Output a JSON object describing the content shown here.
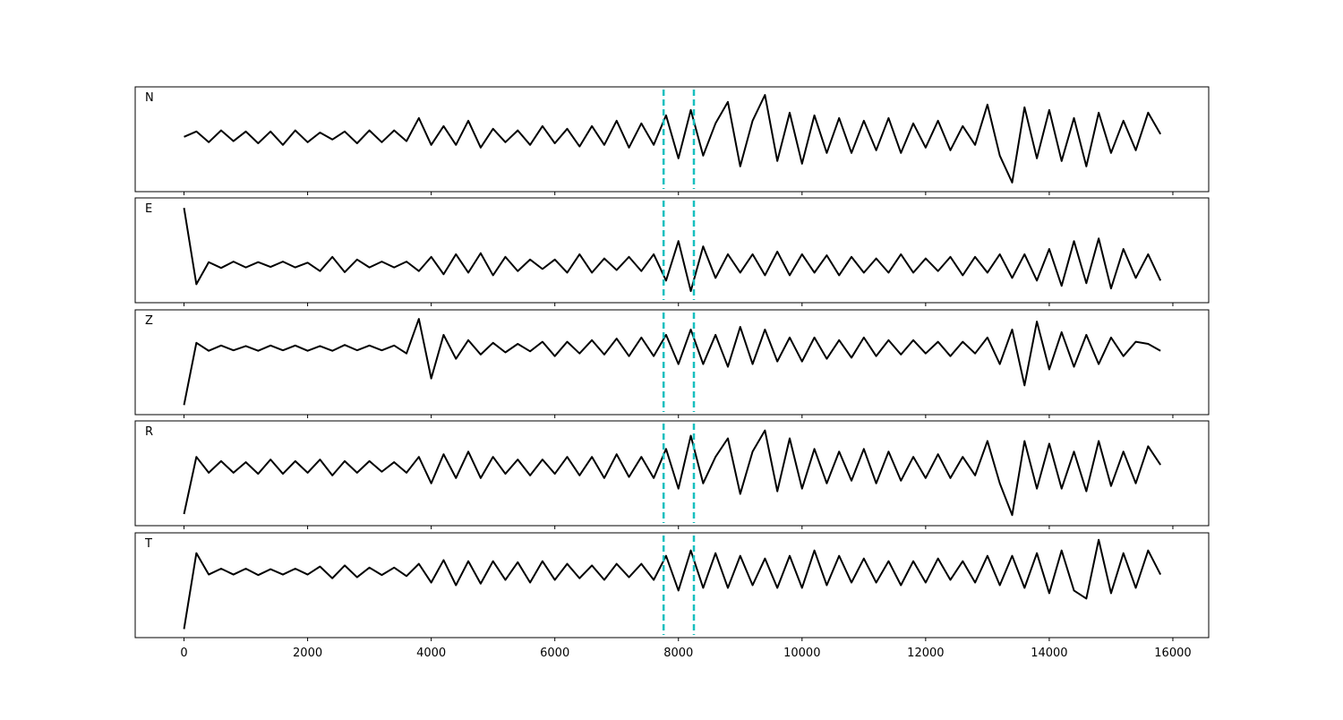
{
  "chart_data": [
    {
      "type": "line",
      "label": "N",
      "color": "#000000",
      "xlim": [
        -790,
        16580
      ],
      "ylim": [
        -1.02,
        0.93
      ],
      "vlines": [
        7760,
        8250
      ],
      "vline_color": "#17bfbf",
      "x": [
        0,
        200,
        400,
        600,
        800,
        1000,
        1200,
        1400,
        1600,
        1800,
        2000,
        2200,
        2400,
        2600,
        2800,
        3000,
        3200,
        3400,
        3600,
        3800,
        4000,
        4200,
        4400,
        4600,
        4800,
        5000,
        5200,
        5400,
        5600,
        5800,
        6000,
        6200,
        6400,
        6600,
        6800,
        7000,
        7200,
        7400,
        7600,
        7800,
        8000,
        8200,
        8400,
        8600,
        8800,
        9000,
        9200,
        9400,
        9600,
        9800,
        10000,
        10200,
        10400,
        10600,
        10800,
        11000,
        11200,
        11400,
        11600,
        11800,
        12000,
        12200,
        12400,
        12600,
        12800,
        13000,
        13200,
        13400,
        13600,
        13800,
        14000,
        14200,
        14400,
        14600,
        14800,
        15000,
        15200,
        15400,
        15600,
        15800
      ],
      "values": [
        0,
        0.1,
        -0.1,
        0.12,
        -0.08,
        0.1,
        -0.12,
        0.1,
        -0.15,
        0.12,
        -0.1,
        0.08,
        -0.05,
        0.1,
        -0.12,
        0.12,
        -0.1,
        0.12,
        -0.08,
        0.35,
        -0.15,
        0.2,
        -0.15,
        0.3,
        -0.2,
        0.15,
        -0.1,
        0.12,
        -0.15,
        0.2,
        -0.12,
        0.15,
        -0.18,
        0.2,
        -0.15,
        0.3,
        -0.2,
        0.25,
        -0.15,
        0.4,
        -0.4,
        0.5,
        -0.35,
        0.25,
        0.65,
        -0.55,
        0.3,
        0.78,
        -0.45,
        0.45,
        -0.5,
        0.4,
        -0.3,
        0.35,
        -0.3,
        0.3,
        -0.25,
        0.35,
        -0.3,
        0.25,
        -0.2,
        0.3,
        -0.25,
        0.2,
        -0.15,
        0.6,
        -0.35,
        -0.85,
        0.55,
        -0.4,
        0.5,
        -0.45,
        0.35,
        -0.55,
        0.45,
        -0.3,
        0.3,
        -0.25,
        0.45,
        0.05
      ]
    },
    {
      "type": "line",
      "label": "E",
      "color": "#000000",
      "xlim": [
        -790,
        16580
      ],
      "ylim": [
        -0.72,
        1.27
      ],
      "vlines": [
        7760,
        8250
      ],
      "vline_color": "#17bfbf",
      "x": [
        0,
        200,
        400,
        600,
        800,
        1000,
        1200,
        1400,
        1600,
        1800,
        2000,
        2200,
        2400,
        2600,
        2800,
        3000,
        3200,
        3400,
        3600,
        3800,
        4000,
        4200,
        4400,
        4600,
        4800,
        5000,
        5200,
        5400,
        5600,
        5800,
        6000,
        6200,
        6400,
        6600,
        6800,
        7000,
        7200,
        7400,
        7600,
        7800,
        8000,
        8200,
        8400,
        8600,
        8800,
        9000,
        9200,
        9400,
        9600,
        9800,
        10000,
        10200,
        10400,
        10600,
        10800,
        11000,
        11200,
        11400,
        11600,
        11800,
        12000,
        12200,
        12400,
        12600,
        12800,
        13000,
        13200,
        13400,
        13600,
        13800,
        14000,
        14200,
        14400,
        14600,
        14800,
        15000,
        15200,
        15400,
        15600,
        15800
      ],
      "values": [
        1.08,
        -0.37,
        0.05,
        -0.06,
        0.06,
        -0.05,
        0.05,
        -0.04,
        0.06,
        -0.05,
        0.04,
        -0.12,
        0.15,
        -0.14,
        0.1,
        -0.05,
        0.06,
        -0.05,
        0.06,
        -0.12,
        0.15,
        -0.18,
        0.2,
        -0.15,
        0.22,
        -0.2,
        0.15,
        -0.12,
        0.1,
        -0.08,
        0.1,
        -0.15,
        0.2,
        -0.15,
        0.12,
        -0.1,
        0.15,
        -0.12,
        0.2,
        -0.3,
        0.45,
        -0.5,
        0.35,
        -0.25,
        0.2,
        -0.15,
        0.2,
        -0.2,
        0.25,
        -0.2,
        0.2,
        -0.15,
        0.18,
        -0.2,
        0.15,
        -0.15,
        0.12,
        -0.15,
        0.2,
        -0.15,
        0.12,
        -0.12,
        0.15,
        -0.2,
        0.15,
        -0.15,
        0.2,
        -0.25,
        0.2,
        -0.3,
        0.3,
        -0.4,
        0.45,
        -0.35,
        0.5,
        -0.45,
        0.3,
        -0.25,
        0.2,
        -0.3
      ]
    },
    {
      "type": "line",
      "label": "Z",
      "color": "#000000",
      "xlim": [
        -790,
        16580
      ],
      "ylim": [
        -1.25,
        0.72
      ],
      "vlines": [
        7760,
        8250
      ],
      "vline_color": "#17bfbf",
      "x": [
        0,
        200,
        400,
        600,
        800,
        1000,
        1200,
        1400,
        1600,
        1800,
        2000,
        2200,
        2400,
        2600,
        2800,
        3000,
        3200,
        3400,
        3600,
        3800,
        4000,
        4200,
        4400,
        4600,
        4800,
        5000,
        5200,
        5400,
        5600,
        5800,
        6000,
        6200,
        6400,
        6600,
        6800,
        7000,
        7200,
        7400,
        7600,
        7800,
        8000,
        8200,
        8400,
        8600,
        8800,
        9000,
        9200,
        9400,
        9600,
        9800,
        10000,
        10200,
        10400,
        10600,
        10800,
        11000,
        11200,
        11400,
        11600,
        11800,
        12000,
        12200,
        12400,
        12600,
        12800,
        13000,
        13200,
        13400,
        13600,
        13800,
        14000,
        14200,
        14400,
        14600,
        14800,
        15000,
        15200,
        15400,
        15600,
        15800
      ],
      "values": [
        -1.07,
        0.1,
        -0.05,
        0.05,
        -0.04,
        0.04,
        -0.05,
        0.05,
        -0.04,
        0.05,
        -0.05,
        0.04,
        -0.05,
        0.06,
        -0.04,
        0.05,
        -0.04,
        0.05,
        -0.1,
        0.55,
        -0.57,
        0.25,
        -0.2,
        0.15,
        -0.12,
        0.1,
        -0.08,
        0.08,
        -0.06,
        0.12,
        -0.15,
        0.12,
        -0.1,
        0.15,
        -0.12,
        0.18,
        -0.15,
        0.2,
        -0.15,
        0.25,
        -0.3,
        0.35,
        -0.3,
        0.25,
        -0.35,
        0.4,
        -0.3,
        0.35,
        -0.25,
        0.2,
        -0.25,
        0.2,
        -0.2,
        0.15,
        -0.18,
        0.2,
        -0.15,
        0.15,
        -0.12,
        0.15,
        -0.1,
        0.12,
        -0.15,
        0.12,
        -0.1,
        0.2,
        -0.3,
        0.35,
        -0.7,
        0.5,
        -0.4,
        0.3,
        -0.35,
        0.25,
        -0.3,
        0.2,
        -0.15,
        0.12,
        0.08,
        -0.05
      ]
    },
    {
      "type": "line",
      "label": "R",
      "color": "#000000",
      "xlim": [
        -790,
        16580
      ],
      "ylim": [
        -1.1,
        0.88
      ],
      "vlines": [
        7760,
        8250
      ],
      "vline_color": "#17bfbf",
      "x": [
        0,
        200,
        400,
        600,
        800,
        1000,
        1200,
        1400,
        1600,
        1800,
        2000,
        2200,
        2400,
        2600,
        2800,
        3000,
        3200,
        3400,
        3600,
        3800,
        4000,
        4200,
        4400,
        4600,
        4800,
        5000,
        5200,
        5400,
        5600,
        5800,
        6000,
        6200,
        6400,
        6600,
        6800,
        7000,
        7200,
        7400,
        7600,
        7800,
        8000,
        8200,
        8400,
        8600,
        8800,
        9000,
        9200,
        9400,
        9600,
        9800,
        10000,
        10200,
        10400,
        10600,
        10800,
        11000,
        11200,
        11400,
        11600,
        11800,
        12000,
        12200,
        12400,
        12600,
        12800,
        13000,
        13200,
        13400,
        13600,
        13800,
        14000,
        14200,
        14400,
        14600,
        14800,
        15000,
        15200,
        15400,
        15600,
        15800
      ],
      "values": [
        -0.88,
        0.2,
        -0.1,
        0.12,
        -0.1,
        0.1,
        -0.12,
        0.15,
        -0.12,
        0.12,
        -0.1,
        0.15,
        -0.15,
        0.12,
        -0.1,
        0.12,
        -0.08,
        0.1,
        -0.1,
        0.2,
        -0.3,
        0.25,
        -0.2,
        0.3,
        -0.2,
        0.2,
        -0.12,
        0.15,
        -0.15,
        0.15,
        -0.12,
        0.2,
        -0.15,
        0.2,
        -0.2,
        0.25,
        -0.18,
        0.2,
        -0.2,
        0.35,
        -0.4,
        0.6,
        -0.3,
        0.2,
        0.55,
        -0.5,
        0.3,
        0.7,
        -0.45,
        0.55,
        -0.4,
        0.35,
        -0.3,
        0.3,
        -0.25,
        0.35,
        -0.3,
        0.3,
        -0.25,
        0.2,
        -0.2,
        0.25,
        -0.2,
        0.2,
        -0.15,
        0.5,
        -0.3,
        -0.9,
        0.5,
        -0.4,
        0.45,
        -0.4,
        0.3,
        -0.45,
        0.5,
        -0.35,
        0.3,
        -0.3,
        0.4,
        0.05
      ]
    },
    {
      "type": "line",
      "label": "T",
      "color": "#000000",
      "xlim": [
        -790,
        16580
      ],
      "ylim": [
        -1.23,
        0.73
      ],
      "vlines": [
        7760,
        8250
      ],
      "vline_color": "#17bfbf",
      "xticks": [
        0,
        2000,
        4000,
        6000,
        8000,
        10000,
        12000,
        14000,
        16000
      ],
      "x": [
        0,
        200,
        400,
        600,
        800,
        1000,
        1200,
        1400,
        1600,
        1800,
        2000,
        2200,
        2400,
        2600,
        2800,
        3000,
        3200,
        3400,
        3600,
        3800,
        4000,
        4200,
        4400,
        4600,
        4800,
        5000,
        5200,
        5400,
        5600,
        5800,
        6000,
        6200,
        6400,
        6600,
        6800,
        7000,
        7200,
        7400,
        7600,
        7800,
        8000,
        8200,
        8400,
        8600,
        8800,
        9000,
        9200,
        9400,
        9600,
        9800,
        10000,
        10200,
        10400,
        10600,
        10800,
        11000,
        11200,
        11400,
        11600,
        11800,
        12000,
        12200,
        12400,
        12600,
        12800,
        13000,
        13200,
        13400,
        13600,
        13800,
        14000,
        14200,
        14400,
        14600,
        14800,
        15000,
        15200,
        15400,
        15600,
        15800
      ],
      "values": [
        -1.07,
        0.35,
        -0.05,
        0.06,
        -0.05,
        0.06,
        -0.06,
        0.05,
        -0.05,
        0.06,
        -0.05,
        0.1,
        -0.12,
        0.12,
        -0.1,
        0.08,
        -0.06,
        0.08,
        -0.08,
        0.15,
        -0.2,
        0.22,
        -0.25,
        0.2,
        -0.22,
        0.2,
        -0.15,
        0.18,
        -0.2,
        0.2,
        -0.15,
        0.15,
        -0.12,
        0.12,
        -0.15,
        0.15,
        -0.1,
        0.15,
        -0.15,
        0.3,
        -0.35,
        0.4,
        -0.3,
        0.35,
        -0.3,
        0.3,
        -0.25,
        0.25,
        -0.3,
        0.3,
        -0.3,
        0.4,
        -0.25,
        0.3,
        -0.2,
        0.25,
        -0.2,
        0.2,
        -0.25,
        0.2,
        -0.2,
        0.25,
        -0.15,
        0.2,
        -0.2,
        0.3,
        -0.25,
        0.3,
        -0.3,
        0.35,
        -0.4,
        0.4,
        -0.35,
        -0.5,
        0.6,
        -0.4,
        0.35,
        -0.3,
        0.4,
        -0.05
      ]
    }
  ]
}
